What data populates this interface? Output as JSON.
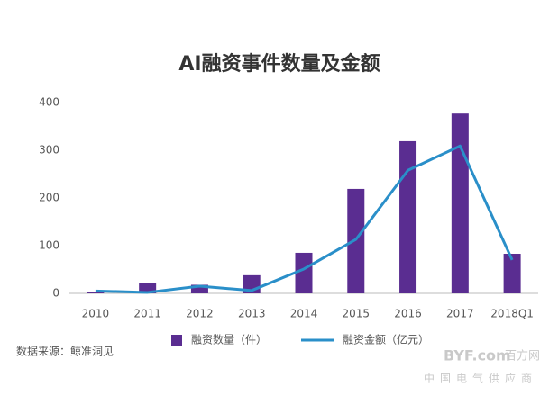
{
  "chart_data": {
    "type": "bar_line",
    "title": "AI融资事件数量及金额",
    "categories": [
      "2010",
      "2011",
      "2012",
      "2013",
      "2014",
      "2015",
      "2016",
      "2017",
      "2018Q1"
    ],
    "series": [
      {
        "name": "融资数量（件）",
        "type": "bar",
        "color": "#5a2d91",
        "values": [
          3,
          21,
          18,
          38,
          85,
          219,
          319,
          377,
          83
        ]
      },
      {
        "name": "融资金额（亿元）",
        "type": "line",
        "color": "#2a8fc9",
        "values": [
          5,
          2,
          15,
          6,
          51,
          113,
          258,
          309,
          70
        ]
      }
    ],
    "ylim": [
      0,
      400
    ],
    "yticks": [
      0,
      100,
      200,
      300,
      400
    ],
    "grid": false,
    "source": "数据来源：鲸准洞见",
    "watermark": [
      "BYF.com",
      "百方网",
      "中国电气供应商"
    ]
  }
}
